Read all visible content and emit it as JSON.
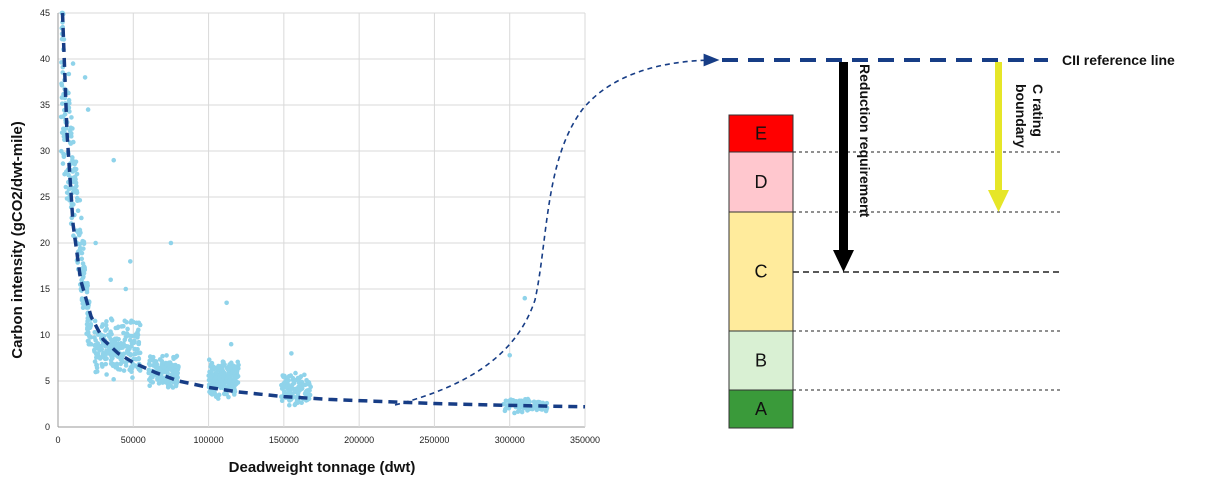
{
  "chart_data": {
    "type": "scatter",
    "xlabel": "Deadweight tonnage (dwt)",
    "ylabel": "Carbon intensity (gCO2/dwt-mile)",
    "xlim": [
      0,
      350000
    ],
    "ylim": [
      0,
      45
    ],
    "x_ticks": [
      "0",
      "50000",
      "100000",
      "150000",
      "200000",
      "250000",
      "300000",
      "350000"
    ],
    "y_ticks": [
      "0",
      "5",
      "10",
      "15",
      "20",
      "25",
      "30",
      "35",
      "40",
      "45"
    ],
    "grid": true,
    "point_color": "#8fd3ea",
    "trend_color": "#173d86",
    "trend_line": [
      [
        3000,
        45
      ],
      [
        6000,
        32
      ],
      [
        10000,
        22
      ],
      [
        15000,
        16
      ],
      [
        22000,
        12
      ],
      [
        30000,
        9.5
      ],
      [
        40000,
        8
      ],
      [
        50000,
        7
      ],
      [
        65000,
        5.9
      ],
      [
        80000,
        5
      ],
      [
        100000,
        4.3
      ],
      [
        120000,
        3.8
      ],
      [
        150000,
        3.3
      ],
      [
        180000,
        3
      ],
      [
        210000,
        2.8
      ],
      [
        250000,
        2.55
      ],
      [
        300000,
        2.35
      ],
      [
        350000,
        2.2
      ]
    ],
    "clusters": [
      {
        "x": [
          2000,
          22000
        ],
        "y": [
          9,
          45
        ],
        "count": 230
      },
      {
        "x": [
          24000,
          55000
        ],
        "y": [
          5,
          12
        ],
        "count": 210
      },
      {
        "x": [
          60000,
          80000
        ],
        "y": [
          4,
          8
        ],
        "count": 140
      },
      {
        "x": [
          100000,
          120000
        ],
        "y": [
          3,
          7.5
        ],
        "count": 200
      },
      {
        "x": [
          148000,
          168000
        ],
        "y": [
          2,
          6
        ],
        "count": 110
      },
      {
        "x": [
          296000,
          325000
        ],
        "y": [
          1.5,
          3.2
        ],
        "count": 90
      }
    ],
    "outliers": [
      [
        75000,
        20
      ],
      [
        37000,
        29
      ],
      [
        112000,
        13.5
      ],
      [
        310000,
        14
      ],
      [
        48000,
        18
      ],
      [
        18000,
        38
      ],
      [
        10000,
        39.5
      ],
      [
        25000,
        20
      ],
      [
        3000,
        44
      ],
      [
        115000,
        9
      ],
      [
        155000,
        8
      ],
      [
        300000,
        7.8
      ],
      [
        35000,
        16
      ],
      [
        45000,
        15
      ],
      [
        20000,
        34.5
      ]
    ]
  },
  "rating_diagram": {
    "reference_label": "CII reference line",
    "reduction_label": "Reduction requirement",
    "boundary_label": "C rating boundary",
    "bands": [
      {
        "label": "E",
        "color": "#ff0000"
      },
      {
        "label": "D",
        "color": "#ffc7ce"
      },
      {
        "label": "C",
        "color": "#ffeb9c"
      },
      {
        "label": "B",
        "color": "#d9f0d3"
      },
      {
        "label": "A",
        "color": "#3a9a3a"
      }
    ],
    "reference_line_color": "#173d86",
    "reduction_arrow_color": "#000000",
    "boundary_arrow_color": "#e6e628"
  }
}
